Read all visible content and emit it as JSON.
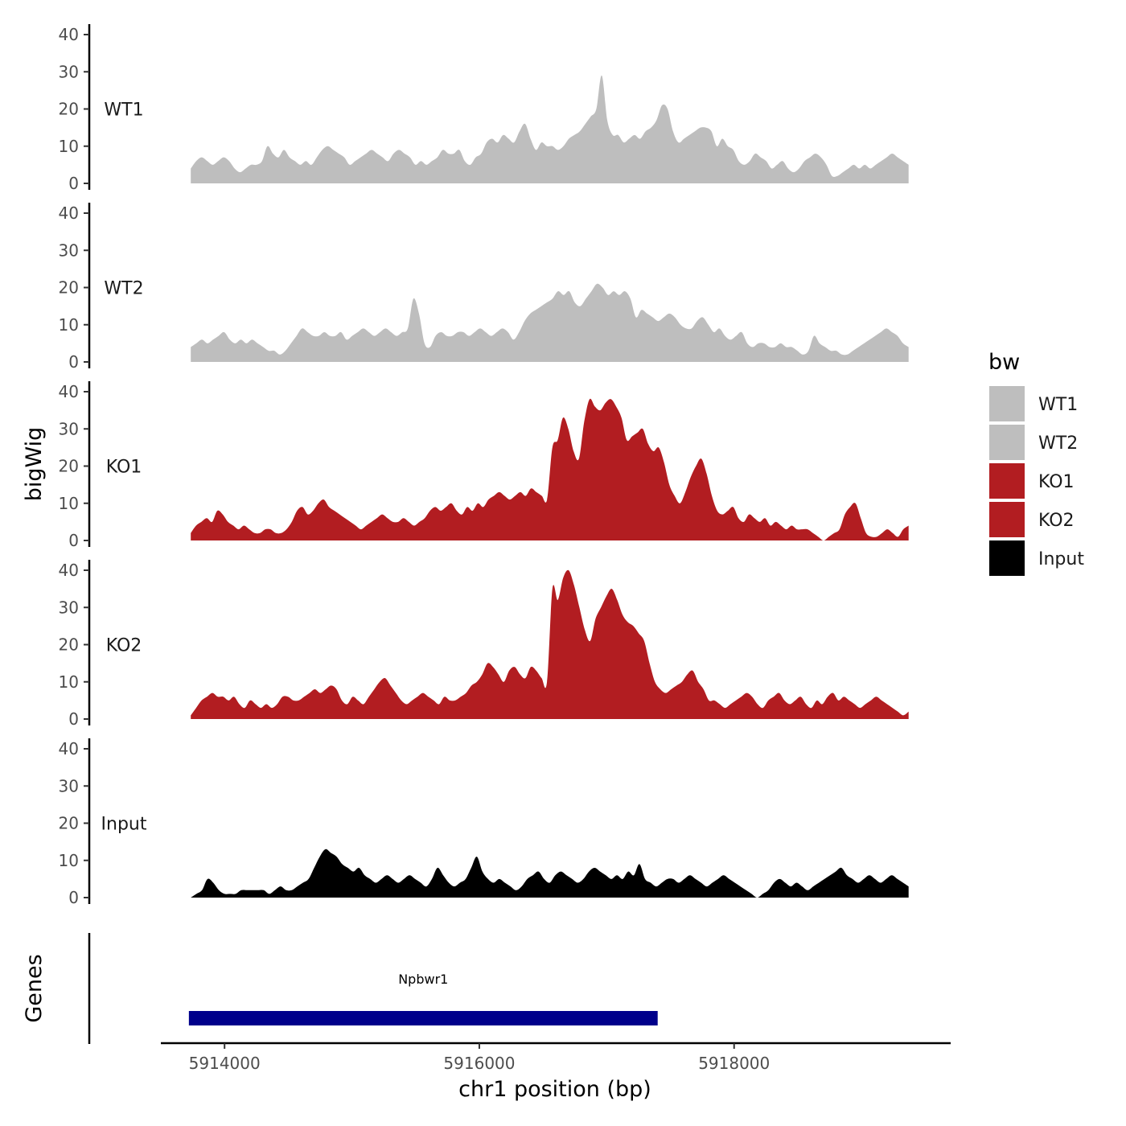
{
  "chart_data": {
    "type": "area",
    "title": "",
    "xlabel": "chr1 position (bp)",
    "ylabel": "bigWig",
    "genes_label": "Genes",
    "xlim": [
      5913500,
      5919700
    ],
    "x_ticks": [
      5914000,
      5916000,
      5918000
    ],
    "x_tick_labels": [
      "5914000",
      "5916000",
      "5918000"
    ],
    "ylim": [
      0,
      40
    ],
    "y_ticks": [
      0,
      10,
      20,
      30,
      40
    ],
    "y_tick_labels": [
      "0",
      "10",
      "20",
      "30",
      "40"
    ],
    "x_start": 5913735,
    "x_end": 5919370,
    "series": [
      {
        "name": "WT1",
        "color": "#bebebe",
        "values": [
          4,
          6,
          7,
          6,
          5,
          6,
          7,
          6,
          4,
          3,
          4,
          5,
          5,
          6,
          10,
          8,
          7,
          9,
          7,
          6,
          5,
          6,
          5,
          7,
          9,
          10,
          9,
          8,
          7,
          5,
          6,
          7,
          8,
          9,
          8,
          7,
          6,
          8,
          9,
          8,
          7,
          5,
          6,
          5,
          6,
          7,
          9,
          8,
          8,
          9,
          6,
          5,
          7,
          8,
          11,
          12,
          11,
          13,
          12,
          11,
          14,
          16,
          12,
          9,
          11,
          10,
          10,
          9,
          10,
          12,
          13,
          14,
          16,
          18,
          20,
          29,
          17,
          13,
          13,
          11,
          12,
          13,
          12,
          14,
          15,
          17,
          21,
          20,
          14,
          11,
          12,
          13,
          14,
          15,
          15,
          14,
          10,
          12,
          10,
          9,
          6,
          5,
          6,
          8,
          7,
          6,
          4,
          5,
          6,
          4,
          3,
          4,
          6,
          7,
          8,
          7,
          5,
          2,
          2,
          3,
          4,
          5,
          4,
          5,
          4,
          5,
          6,
          7,
          8,
          7,
          6,
          5
        ]
      },
      {
        "name": "WT2",
        "color": "#bebebe",
        "values": [
          4,
          5,
          6,
          5,
          6,
          7,
          8,
          6,
          5,
          6,
          5,
          6,
          5,
          4,
          3,
          3,
          2,
          3,
          5,
          7,
          9,
          8,
          7,
          7,
          8,
          7,
          7,
          8,
          6,
          7,
          8,
          9,
          8,
          7,
          8,
          9,
          8,
          7,
          8,
          9,
          17,
          13,
          5,
          4,
          7,
          8,
          7,
          7,
          8,
          8,
          7,
          8,
          9,
          8,
          7,
          8,
          9,
          8,
          6,
          8,
          11,
          13,
          14,
          15,
          16,
          17,
          19,
          18,
          19,
          16,
          15,
          17,
          19,
          21,
          20,
          18,
          19,
          18,
          19,
          17,
          12,
          14,
          13,
          12,
          11,
          12,
          13,
          12,
          10,
          9,
          9,
          11,
          12,
          10,
          8,
          9,
          7,
          6,
          7,
          8,
          5,
          4,
          5,
          5,
          4,
          4,
          5,
          4,
          4,
          3,
          2,
          3,
          7,
          5,
          4,
          3,
          3,
          2,
          2,
          3,
          4,
          5,
          6,
          7,
          8,
          9,
          8,
          7,
          5,
          4
        ]
      },
      {
        "name": "KO1",
        "color": "#b21d21",
        "values": [
          2,
          4,
          5,
          6,
          5,
          8,
          7,
          5,
          4,
          3,
          4,
          3,
          2,
          2,
          3,
          3,
          2,
          2,
          3,
          5,
          8,
          9,
          7,
          8,
          10,
          11,
          9,
          8,
          7,
          6,
          5,
          4,
          3,
          4,
          5,
          6,
          7,
          6,
          5,
          5,
          6,
          5,
          4,
          5,
          6,
          8,
          9,
          8,
          9,
          10,
          8,
          7,
          9,
          8,
          10,
          9,
          11,
          12,
          13,
          12,
          11,
          12,
          13,
          12,
          14,
          13,
          12,
          11,
          25,
          27,
          33,
          30,
          24,
          22,
          32,
          38,
          36,
          35,
          37,
          38,
          36,
          33,
          27,
          28,
          29,
          30,
          26,
          24,
          25,
          21,
          15,
          12,
          10,
          13,
          17,
          20,
          22,
          18,
          12,
          8,
          7,
          8,
          9,
          6,
          5,
          7,
          6,
          5,
          6,
          4,
          5,
          4,
          3,
          4,
          3,
          3,
          3,
          2,
          1,
          0,
          1,
          2,
          3,
          7,
          9,
          10,
          6,
          2,
          1,
          1,
          2,
          3,
          2,
          1,
          3,
          4
        ]
      },
      {
        "name": "KO2",
        "color": "#b21d21",
        "values": [
          1,
          3,
          5,
          6,
          7,
          6,
          6,
          5,
          6,
          4,
          3,
          5,
          4,
          3,
          4,
          3,
          4,
          6,
          6,
          5,
          5,
          6,
          7,
          8,
          7,
          8,
          9,
          8,
          5,
          4,
          6,
          5,
          4,
          6,
          8,
          10,
          11,
          9,
          7,
          5,
          4,
          5,
          6,
          7,
          6,
          5,
          4,
          6,
          5,
          5,
          6,
          7,
          9,
          10,
          12,
          15,
          14,
          12,
          10,
          13,
          14,
          12,
          11,
          14,
          13,
          11,
          10,
          35,
          32,
          38,
          40,
          36,
          30,
          24,
          21,
          27,
          30,
          33,
          35,
          32,
          28,
          26,
          25,
          23,
          21,
          15,
          10,
          8,
          7,
          8,
          9,
          10,
          12,
          13,
          10,
          8,
          5,
          5,
          4,
          3,
          4,
          5,
          6,
          7,
          6,
          4,
          3,
          5,
          6,
          7,
          5,
          4,
          5,
          6,
          4,
          3,
          5,
          4,
          6,
          7,
          5,
          6,
          5,
          4,
          3,
          4,
          5,
          6,
          5,
          4,
          3,
          2,
          1,
          2
        ]
      },
      {
        "name": "Input",
        "color": "#000000",
        "values": [
          0,
          1,
          2,
          5,
          4,
          2,
          1,
          1,
          1,
          2,
          2,
          2,
          2,
          2,
          1,
          2,
          3,
          2,
          2,
          3,
          4,
          5,
          8,
          11,
          13,
          12,
          11,
          9,
          8,
          7,
          8,
          6,
          5,
          4,
          5,
          6,
          5,
          4,
          5,
          6,
          5,
          4,
          3,
          5,
          8,
          6,
          4,
          3,
          4,
          5,
          8,
          11,
          7,
          5,
          4,
          5,
          4,
          3,
          2,
          3,
          5,
          6,
          7,
          5,
          4,
          6,
          7,
          6,
          5,
          4,
          5,
          7,
          8,
          7,
          6,
          5,
          6,
          5,
          7,
          6,
          9,
          5,
          4,
          3,
          4,
          5,
          5,
          4,
          5,
          6,
          5,
          4,
          3,
          4,
          5,
          6,
          5,
          4,
          3,
          2,
          1,
          0,
          1,
          2,
          4,
          5,
          4,
          3,
          4,
          3,
          2,
          3,
          4,
          5,
          6,
          7,
          8,
          6,
          5,
          4,
          5,
          6,
          5,
          4,
          5,
          6,
          5,
          4,
          3
        ]
      }
    ],
    "legend_title": "bw",
    "legend_position": "right",
    "legend": [
      {
        "label": "WT1",
        "color": "#bebebe"
      },
      {
        "label": "WT2",
        "color": "#bebebe"
      },
      {
        "label": "KO1",
        "color": "#b21d21"
      },
      {
        "label": "KO2",
        "color": "#b21d21"
      },
      {
        "label": "Input",
        "color": "#000000"
      }
    ],
    "genes": [
      {
        "name": "Npbwr1",
        "start": 5913720,
        "end": 5917400,
        "color": "#00008b"
      }
    ]
  }
}
